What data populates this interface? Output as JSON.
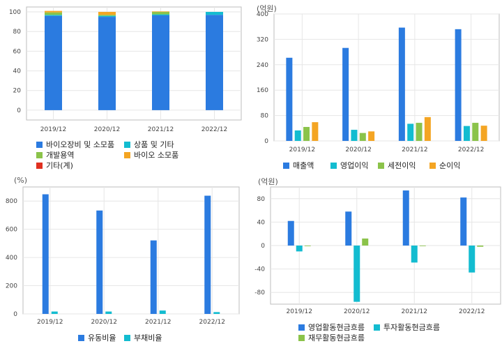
{
  "colors": {
    "blue": "#2b7be0",
    "cyan": "#13bcd0",
    "green": "#8bc34a",
    "orange": "#f4a523",
    "red": "#e03020",
    "grid": "#e6e6e6",
    "frame": "#bdbdbd"
  },
  "chart_data": [
    {
      "id": "composition",
      "type": "bar",
      "stacked": true,
      "unit": "",
      "categories": [
        "2019/12",
        "2020/12",
        "2021/12",
        "2022/12"
      ],
      "ylim": [
        -10,
        105
      ],
      "yticks": [
        0,
        20,
        40,
        60,
        80,
        100
      ],
      "grid": true,
      "legend_position": "bottom",
      "series": [
        {
          "name": "바이오장비 및 소모품",
          "color": "#2b7be0",
          "values": [
            96,
            95,
            96.5,
            97
          ]
        },
        {
          "name": "상품 및 기타",
          "color": "#13bcd0",
          "values": [
            1,
            1,
            1,
            3
          ]
        },
        {
          "name": "개발용역",
          "color": "#8bc34a",
          "values": [
            2.5,
            1,
            2.5,
            0
          ]
        },
        {
          "name": "바이오 소모품",
          "color": "#f4a523",
          "values": [
            1.5,
            3,
            0.5,
            0
          ]
        },
        {
          "name": "기타(계)",
          "color": "#e03020",
          "values": [
            0,
            0,
            0,
            0
          ]
        }
      ]
    },
    {
      "id": "income",
      "type": "bar",
      "unit": "(억원)",
      "categories": [
        "2019/12",
        "2020/12",
        "2021/12",
        "2022/12"
      ],
      "ylim": [
        0,
        400
      ],
      "yticks": [
        0,
        80,
        160,
        240,
        320,
        400
      ],
      "grid": true,
      "legend_position": "bottom",
      "series": [
        {
          "name": "매출액",
          "color": "#2b7be0",
          "values": [
            262,
            293,
            357,
            352
          ]
        },
        {
          "name": "영업이익",
          "color": "#13bcd0",
          "values": [
            33,
            35,
            54,
            47
          ]
        },
        {
          "name": "세전이익",
          "color": "#8bc34a",
          "values": [
            44,
            25,
            57,
            57
          ]
        },
        {
          "name": "순이익",
          "color": "#f4a523",
          "values": [
            59,
            30,
            75,
            48
          ]
        }
      ]
    },
    {
      "id": "ratios",
      "type": "bar",
      "unit": "(%)",
      "categories": [
        "2019/12",
        "2020/12",
        "2021/12",
        "2022/12"
      ],
      "ylim": [
        0,
        900
      ],
      "yticks": [
        0,
        200,
        400,
        600,
        800
      ],
      "grid": true,
      "legend_position": "bottom",
      "series": [
        {
          "name": "유동비율",
          "color": "#2b7be0",
          "values": [
            848,
            733,
            521,
            838
          ]
        },
        {
          "name": "부채비율",
          "color": "#13bcd0",
          "values": [
            17,
            17,
            24,
            13
          ]
        }
      ]
    },
    {
      "id": "cashflow",
      "type": "bar",
      "unit": "(억원)",
      "categories": [
        "2019/12",
        "2020/12",
        "2021/12",
        "2022/12"
      ],
      "ylim": [
        -100,
        100
      ],
      "yticks": [
        -80,
        -40,
        0,
        40,
        80
      ],
      "grid": true,
      "legend_position": "bottom",
      "series": [
        {
          "name": "영업활동현금흐름",
          "color": "#2b7be0",
          "values": [
            42,
            58,
            94,
            82
          ]
        },
        {
          "name": "투자활동현금흐름",
          "color": "#13bcd0",
          "values": [
            -10,
            -96,
            -29,
            -46
          ]
        },
        {
          "name": "재무활동현금흐름",
          "color": "#8bc34a",
          "values": [
            -1,
            12,
            -1,
            -2
          ]
        }
      ]
    }
  ]
}
